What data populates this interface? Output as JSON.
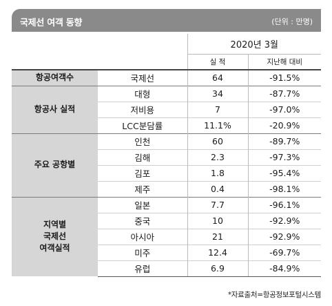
{
  "title": "국제선 여객 동향",
  "unit": "(단위 : 만명)",
  "header": {
    "year": "2020년 3월",
    "col_actual": "실  적",
    "col_yoy": "지난해 대비"
  },
  "groups": [
    {
      "name": "항공여객수",
      "rows": [
        {
          "item": "국제선",
          "value": "64",
          "change": "-91.5%"
        }
      ]
    },
    {
      "name": "항공사 실적",
      "rows": [
        {
          "item": "대형",
          "value": "34",
          "change": "-87.7%"
        },
        {
          "item": "저비용",
          "value": "7",
          "change": "-97.0%"
        },
        {
          "item": "LCC분담률",
          "value": "11.1%",
          "change": "-20.9%"
        }
      ]
    },
    {
      "name": "주요 공항별",
      "rows": [
        {
          "item": "인천",
          "value": "60",
          "change": "-89.7%"
        },
        {
          "item": "김해",
          "value": "2.3",
          "change": "-97.3%"
        },
        {
          "item": "김포",
          "value": "1.8",
          "change": "-95.4%"
        },
        {
          "item": "제주",
          "value": "0.4",
          "change": "-98.1%"
        }
      ]
    },
    {
      "name": "지역별\n국제선\n여객실적",
      "rows": [
        {
          "item": "일본",
          "value": "7.7",
          "change": "-96.1%"
        },
        {
          "item": "중국",
          "value": "10",
          "change": "-92.9%"
        },
        {
          "item": "아시아",
          "value": "21",
          "change": "-92.9%"
        },
        {
          "item": "미주",
          "value": "12.4",
          "change": "-69.7%"
        },
        {
          "item": "유럽",
          "value": "6.9",
          "change": "-84.9%"
        }
      ]
    }
  ],
  "source": "*자료출처=항공정보포털시스템"
}
